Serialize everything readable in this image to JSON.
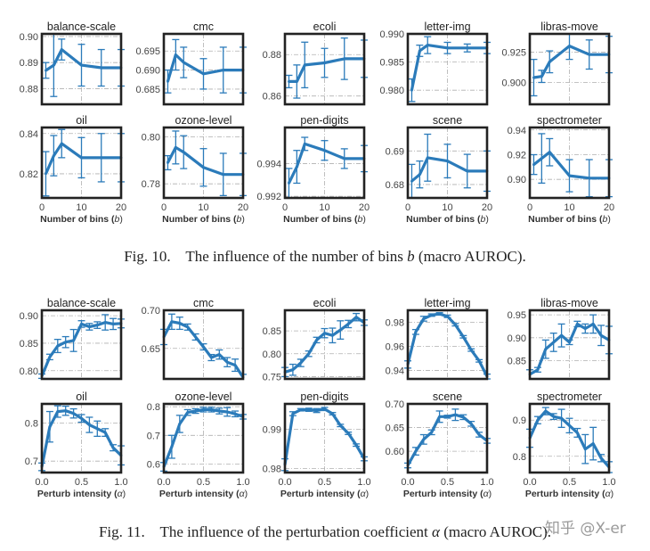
{
  "colors": {
    "line": "#2b7bba",
    "frame": "#222222",
    "grid": "#b0b0b0"
  },
  "figures": [
    {
      "caption": {
        "label": "Fig. 10.",
        "before": "The influence of the number of bins ",
        "var": "b",
        "after": " (macro AUROC)."
      },
      "xlabel": "Number of bins",
      "xvar": "b",
      "x": [
        1,
        3,
        5,
        10,
        15,
        20
      ],
      "xlim": [
        0,
        20
      ],
      "xticks": [
        0,
        10,
        20
      ],
      "xtick_labels": [
        "0",
        "10",
        "20"
      ]
    },
    {
      "caption": {
        "label": "Fig. 11.",
        "before": "The influence of the perturbation coefficient ",
        "var": "α",
        "after": " (macro AUROC)."
      },
      "xlabel": "Perturb intensity",
      "xvar": "α",
      "x": [
        0,
        0.1,
        0.2,
        0.3,
        0.4,
        0.5,
        0.6,
        0.7,
        0.8,
        0.9,
        1.0
      ],
      "xlim": [
        0,
        1
      ],
      "xticks": [
        0,
        0.5,
        1
      ],
      "xtick_labels": [
        "0.0",
        "0.5",
        "1.0"
      ]
    }
  ],
  "chart_data": [
    {
      "type": "line",
      "figure": 0,
      "title": "balance-scale",
      "ylim": [
        0.874,
        0.901
      ],
      "yticks": [
        "0.88",
        "0.89",
        "0.90"
      ],
      "values": [
        0.887,
        0.889,
        0.895,
        0.889,
        0.888,
        0.888
      ],
      "err": [
        0.003,
        0.012,
        0.004,
        0.008,
        0.007,
        0.007
      ]
    },
    {
      "type": "line",
      "figure": 0,
      "title": "cmc",
      "ylim": [
        0.681,
        0.6995
      ],
      "yticks": [
        "0.685",
        "0.690",
        "0.695"
      ],
      "values": [
        0.687,
        0.694,
        0.692,
        0.689,
        0.69,
        0.69
      ],
      "err": [
        0.003,
        0.004,
        0.004,
        0.004,
        0.006,
        0.006
      ]
    },
    {
      "type": "line",
      "figure": 0,
      "title": "ecoli",
      "ylim": [
        0.856,
        0.89
      ],
      "yticks": [
        "0.86",
        "0.88"
      ],
      "values": [
        0.867,
        0.867,
        0.875,
        0.876,
        0.878,
        0.878
      ],
      "err": [
        0.003,
        0.008,
        0.011,
        0.007,
        0.01,
        0.009
      ]
    },
    {
      "type": "line",
      "figure": 0,
      "title": "letter-img",
      "ylim": [
        0.9775,
        0.99
      ],
      "yticks": [
        "0.980",
        "0.985",
        "0.990"
      ],
      "values": [
        0.98,
        0.987,
        0.988,
        0.9875,
        0.9875,
        0.9875
      ],
      "err": [
        0.002,
        0.001,
        0.0015,
        0.001,
        0.0007,
        0.001
      ]
    },
    {
      "type": "line",
      "figure": 0,
      "title": "libras-move",
      "ylim": [
        0.882,
        0.94
      ],
      "yticks": [
        "0.900",
        "0.925"
      ],
      "values": [
        0.904,
        0.905,
        0.917,
        0.93,
        0.923,
        0.923
      ],
      "err": [
        0.015,
        0.005,
        0.009,
        0.011,
        0.012,
        0.015
      ]
    },
    {
      "type": "line",
      "figure": 0,
      "title": "oil",
      "ylim": [
        0.808,
        0.843
      ],
      "yticks": [
        "0.82",
        "0.84"
      ],
      "values": [
        0.82,
        0.829,
        0.835,
        0.828,
        0.828,
        0.828
      ],
      "err": [
        0.011,
        0.01,
        0.007,
        0.01,
        0.012,
        0.012
      ]
    },
    {
      "type": "line",
      "figure": 0,
      "title": "ozone-level",
      "ylim": [
        0.774,
        0.804
      ],
      "yticks": [
        "0.78",
        "0.80"
      ],
      "values": [
        0.789,
        0.7955,
        0.7935,
        0.787,
        0.784,
        0.784
      ],
      "err": [
        0.003,
        0.007,
        0.007,
        0.008,
        0.009,
        0.009
      ]
    },
    {
      "type": "line",
      "figure": 0,
      "title": "pen-digits",
      "ylim": [
        0.9919,
        0.9962
      ],
      "yticks": [
        "0.992",
        "0.994"
      ],
      "values": [
        0.9928,
        0.9938,
        0.9952,
        0.9948,
        0.9943,
        0.9943
      ],
      "err": [
        0.0009,
        0.001,
        0.0004,
        0.0006,
        0.0006,
        0.0008
      ]
    },
    {
      "type": "line",
      "figure": 0,
      "title": "scene",
      "ylim": [
        0.676,
        0.697
      ],
      "yticks": [
        "0.68",
        "0.69"
      ],
      "values": [
        0.681,
        0.683,
        0.688,
        0.687,
        0.684,
        0.684
      ],
      "err": [
        0.005,
        0.004,
        0.007,
        0.005,
        0.005,
        0.006
      ]
    },
    {
      "type": "line",
      "figure": 0,
      "title": "spectrometer",
      "ylim": [
        0.885,
        0.942
      ],
      "yticks": [
        "0.90",
        "0.92",
        "0.94"
      ],
      "values": [
        0.912,
        0.917,
        0.922,
        0.903,
        0.901,
        0.901
      ],
      "err": [
        0.008,
        0.02,
        0.011,
        0.013,
        0.015,
        0.015
      ]
    },
    {
      "type": "line",
      "figure": 1,
      "title": "balance-scale",
      "ylim": [
        0.785,
        0.91
      ],
      "yticks": [
        "0.80",
        "0.85",
        "0.90"
      ],
      "values": [
        0.79,
        0.825,
        0.845,
        0.852,
        0.855,
        0.885,
        0.88,
        0.883,
        0.888,
        0.885,
        0.886
      ],
      "err": [
        0.004,
        0.005,
        0.012,
        0.01,
        0.02,
        0.006,
        0.006,
        0.006,
        0.014,
        0.01,
        0.008
      ]
    },
    {
      "type": "line",
      "figure": 1,
      "title": "cmc",
      "ylim": [
        0.61,
        0.7
      ],
      "yticks": [
        "0.65",
        "0.70"
      ],
      "values": [
        0.665,
        0.685,
        0.683,
        0.678,
        0.665,
        0.652,
        0.638,
        0.642,
        0.632,
        0.628,
        0.612
      ],
      "err": [
        0.01,
        0.01,
        0.008,
        0.004,
        0.004,
        0.004,
        0.004,
        0.006,
        0.006,
        0.008,
        0.004
      ]
    },
    {
      "type": "line",
      "figure": 1,
      "title": "ecoli",
      "ylim": [
        0.745,
        0.895
      ],
      "yticks": [
        "0.75",
        "0.80",
        "0.85"
      ],
      "values": [
        0.76,
        0.765,
        0.78,
        0.8,
        0.83,
        0.845,
        0.84,
        0.852,
        0.865,
        0.88,
        0.868
      ],
      "err": [
        0.01,
        0.012,
        0.008,
        0.006,
        0.006,
        0.01,
        0.016,
        0.02,
        0.008,
        0.008,
        0.006
      ]
    },
    {
      "type": "line",
      "figure": 1,
      "title": "letter-img",
      "ylim": [
        0.933,
        0.99
      ],
      "yticks": [
        "0.94",
        "0.96",
        "0.98"
      ],
      "values": [
        0.945,
        0.972,
        0.983,
        0.986,
        0.987,
        0.985,
        0.978,
        0.968,
        0.957,
        0.948,
        0.935
      ],
      "err": [
        0.003,
        0.002,
        0.002,
        0.001,
        0.001,
        0.001,
        0.001,
        0.001,
        0.001,
        0.001,
        0.002
      ]
    },
    {
      "type": "line",
      "figure": 1,
      "title": "libras-move",
      "ylim": [
        0.81,
        0.96
      ],
      "yticks": [
        "0.85",
        "0.90",
        "0.95"
      ],
      "values": [
        0.82,
        0.83,
        0.875,
        0.89,
        0.905,
        0.89,
        0.93,
        0.92,
        0.93,
        0.905,
        0.895
      ],
      "err": [
        0.01,
        0.005,
        0.02,
        0.02,
        0.025,
        0.005,
        0.006,
        0.01,
        0.02,
        0.022,
        0.03
      ]
    },
    {
      "type": "line",
      "figure": 1,
      "title": "oil",
      "ylim": [
        0.67,
        0.85
      ],
      "yticks": [
        "0.7",
        "0.8"
      ],
      "values": [
        0.685,
        0.79,
        0.83,
        0.832,
        0.825,
        0.812,
        0.795,
        0.785,
        0.775,
        0.735,
        0.715
      ],
      "err": [
        0.01,
        0.04,
        0.015,
        0.012,
        0.012,
        0.01,
        0.02,
        0.02,
        0.01,
        0.008,
        0.025
      ]
    },
    {
      "type": "line",
      "figure": 1,
      "title": "ozone-level",
      "ylim": [
        0.57,
        0.81
      ],
      "yticks": [
        "0.6",
        "0.7",
        "0.8"
      ],
      "values": [
        0.59,
        0.66,
        0.74,
        0.78,
        0.785,
        0.79,
        0.79,
        0.785,
        0.782,
        0.775,
        0.765
      ],
      "err": [
        0.015,
        0.04,
        0.03,
        0.01,
        0.008,
        0.008,
        0.008,
        0.01,
        0.015,
        0.01,
        0.008
      ]
    },
    {
      "type": "line",
      "figure": 1,
      "title": "pen-digits",
      "ylim": [
        0.979,
        0.9965
      ],
      "yticks": [
        "0.98",
        "0.99"
      ],
      "values": [
        0.981,
        0.994,
        0.995,
        0.995,
        0.9948,
        0.9952,
        0.994,
        0.991,
        0.989,
        0.986,
        0.9825
      ],
      "err": [
        0.0015,
        0.0005,
        0.0003,
        0.0004,
        0.0005,
        0.0004,
        0.0003,
        0.0003,
        0.0003,
        0.0003,
        0.0005
      ]
    },
    {
      "type": "line",
      "figure": 1,
      "title": "scene",
      "ylim": [
        0.555,
        0.7
      ],
      "yticks": [
        "0.60",
        "0.65",
        "0.70"
      ],
      "values": [
        0.57,
        0.6,
        0.625,
        0.64,
        0.673,
        0.673,
        0.677,
        0.672,
        0.658,
        0.635,
        0.622
      ],
      "err": [
        0.005,
        0.008,
        0.01,
        0.005,
        0.012,
        0.003,
        0.012,
        0.005,
        0.005,
        0.005,
        0.005
      ]
    },
    {
      "type": "line",
      "figure": 1,
      "title": "spectrometer",
      "ylim": [
        0.755,
        0.945
      ],
      "yticks": [
        "0.8",
        "0.9"
      ],
      "values": [
        0.85,
        0.9,
        0.925,
        0.91,
        0.905,
        0.885,
        0.865,
        0.82,
        0.835,
        0.795,
        0.77
      ],
      "err": [
        0.025,
        0.01,
        0.01,
        0.008,
        0.025,
        0.02,
        0.012,
        0.04,
        0.045,
        0.01,
        0.015
      ]
    }
  ],
  "watermark": "知乎 @X-er"
}
